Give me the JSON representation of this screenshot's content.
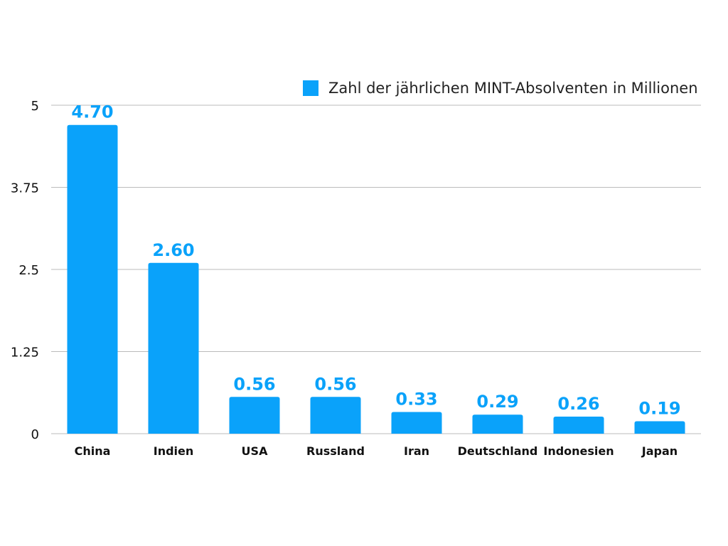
{
  "chart_data": {
    "type": "bar",
    "title": "",
    "xlabel": "",
    "ylabel": "",
    "categories": [
      "China",
      "Indien",
      "USA",
      "Russland",
      "Iran",
      "Deutschland",
      "Indonesien",
      "Japan"
    ],
    "series": [
      {
        "name": "Zahl der jährlichen MINT-Absolventen in Millionen",
        "values": [
          4.7,
          2.6,
          0.56,
          0.56,
          0.33,
          0.29,
          0.26,
          0.19
        ],
        "data_labels": [
          "4.70",
          "2.60",
          "0.56",
          "0.56",
          "0.33",
          "0.29",
          "0.26",
          "0.19"
        ],
        "color": "#0AA2FA"
      }
    ],
    "ylim": [
      0,
      5
    ],
    "yticks": [
      0,
      1.25,
      2.5,
      3.75,
      5
    ],
    "ytick_labels": [
      "0",
      "1.25",
      "2.5",
      "3.75",
      "5"
    ],
    "grid": true,
    "legend_position": "top-right",
    "colors": {
      "bar": "#0AA2FA",
      "grid": "#BBBBBB",
      "label": "#0AA2FA"
    }
  }
}
